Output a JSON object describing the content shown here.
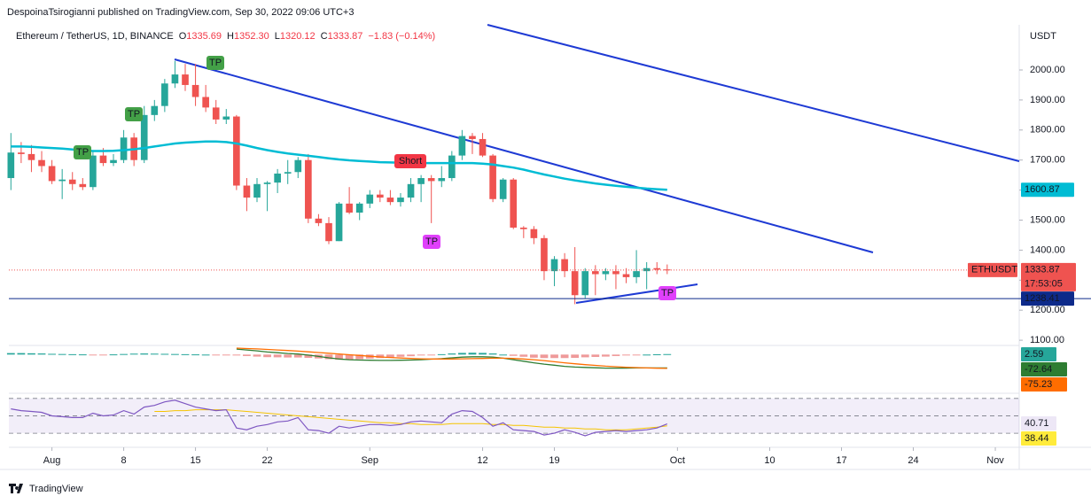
{
  "header": {
    "publisher": "DespoinaTsirogianni published on TradingView.com, Sep 30, 2022 09:06 UTC+3",
    "symbol": "Ethereum / TetherUS, 1D, BINANCE",
    "ohlc": [
      "O",
      "1335.69",
      "H",
      "1352.30",
      "L",
      "1320.12",
      "C",
      "1333.87",
      "−1.83 (−0.14%)"
    ]
  },
  "footer": "TradingView",
  "chart_data": {
    "type": "candlestick",
    "currency": "USDT",
    "countdown": "17:53:05",
    "xlim": [
      -0.2,
      98.33
    ],
    "xticks": [
      {
        "value": 4,
        "label": "Aug"
      },
      {
        "value": 11,
        "label": "8"
      },
      {
        "value": 18,
        "label": "15"
      },
      {
        "value": 25,
        "label": "22"
      },
      {
        "value": 35,
        "label": "Sep"
      },
      {
        "value": 46,
        "label": "12"
      },
      {
        "value": 53,
        "label": "19"
      },
      {
        "value": 65,
        "label": "Oct"
      },
      {
        "value": 74,
        "label": "10"
      },
      {
        "value": 81,
        "label": "17"
      },
      {
        "value": 88,
        "label": "24"
      },
      {
        "value": 96,
        "label": "Nov"
      }
    ],
    "ylim": [
      1082.6,
      2144.5
    ],
    "yticks": [
      {
        "value": 1100,
        "label": "1100.00"
      },
      {
        "value": 1200,
        "label": "1200.00"
      },
      {
        "value": 1300,
        "label": "1300.00"
      },
      {
        "value": 1400,
        "label": "1400.00"
      },
      {
        "value": 1500,
        "label": "1500.00"
      },
      {
        "value": 1600,
        "label": "1600.00"
      },
      {
        "value": 1700,
        "label": "1700.00"
      },
      {
        "value": 1800,
        "label": "1800.00"
      },
      {
        "value": 1900,
        "label": "1900.00"
      },
      {
        "value": 2000,
        "label": "2000.00"
      }
    ],
    "series": [
      {
        "name": "ETHUSDT",
        "up_color": "#26a69a",
        "down_color": "#ef5350",
        "open": [
          1640,
          1725,
          1720,
          1700,
          1680,
          1630,
          1635,
          1620,
          1610,
          1715,
          1690,
          1700,
          1775,
          1700,
          1850,
          1880,
          1955,
          1985,
          1950,
          1910,
          1875,
          1835,
          1845,
          1615,
          1575,
          1620,
          1625,
          1655,
          1660,
          1700,
          1505,
          1490,
          1430,
          1555,
          1525,
          1555,
          1585,
          1575,
          1560,
          1575,
          1620,
          1640,
          1630,
          1640,
          1715,
          1780,
          1770,
          1715,
          1570,
          1635,
          1475,
          1470,
          1440,
          1330,
          1370,
          1330,
          1250,
          1330,
          1320,
          1330,
          1320,
          1310,
          1330,
          1340,
          1335.69
        ],
        "high": [
          1790,
          1760,
          1750,
          1730,
          1700,
          1670,
          1660,
          1640,
          1730,
          1740,
          1720,
          1800,
          1790,
          1880,
          1900,
          1970,
          2030,
          2020,
          2020,
          1950,
          1900,
          1870,
          1850,
          1640,
          1640,
          1630,
          1670,
          1700,
          1710,
          1720,
          1520,
          1510,
          1560,
          1610,
          1560,
          1600,
          1600,
          1600,
          1590,
          1640,
          1650,
          1650,
          1680,
          1730,
          1800,
          1790,
          1790,
          1720,
          1640,
          1640,
          1480,
          1480,
          1450,
          1380,
          1390,
          1410,
          1340,
          1350,
          1340,
          1350,
          1340,
          1400,
          1360,
          1360,
          1352.3
        ],
        "low": [
          1600,
          1690,
          1660,
          1660,
          1620,
          1570,
          1600,
          1600,
          1600,
          1680,
          1680,
          1690,
          1680,
          1690,
          1830,
          1860,
          1940,
          1930,
          1880,
          1860,
          1820,
          1820,
          1600,
          1530,
          1560,
          1530,
          1590,
          1620,
          1640,
          1490,
          1480,
          1420,
          1430,
          1520,
          1500,
          1540,
          1560,
          1550,
          1545,
          1560,
          1560,
          1490,
          1610,
          1630,
          1700,
          1720,
          1710,
          1560,
          1560,
          1470,
          1440,
          1420,
          1300,
          1280,
          1310,
          1220,
          1240,
          1250,
          1300,
          1270,
          1290,
          1290,
          1270,
          1320,
          1320.12
        ],
        "close": [
          1725,
          1720,
          1700,
          1680,
          1630,
          1635,
          1620,
          1610,
          1715,
          1690,
          1700,
          1775,
          1700,
          1850,
          1880,
          1955,
          1985,
          1950,
          1910,
          1875,
          1835,
          1845,
          1615,
          1575,
          1620,
          1625,
          1655,
          1660,
          1700,
          1505,
          1490,
          1430,
          1555,
          1525,
          1555,
          1585,
          1575,
          1560,
          1575,
          1620,
          1640,
          1630,
          1640,
          1715,
          1780,
          1770,
          1715,
          1570,
          1635,
          1475,
          1470,
          1440,
          1330,
          1370,
          1330,
          1250,
          1330,
          1320,
          1330,
          1320,
          1310,
          1330,
          1340,
          1335,
          1333.87
        ]
      },
      {
        "color": "#00bcd4",
        "values": [
          1745,
          1745,
          1744,
          1742,
          1740,
          1738,
          1735,
          1732,
          1730,
          1730,
          1731,
          1733,
          1736,
          1740,
          1745,
          1750,
          1755,
          1758,
          1760,
          1762,
          1762,
          1760,
          1755,
          1748,
          1740,
          1733,
          1727,
          1722,
          1718,
          1714,
          1710,
          1706,
          1702,
          1699,
          1697,
          1695,
          1693,
          1692,
          1691,
          1690,
          1690,
          1690,
          1690,
          1690,
          1690,
          1690,
          1688,
          1685,
          1680,
          1675,
          1668,
          1660,
          1652,
          1645,
          1638,
          1632,
          1627,
          1622,
          1618,
          1614,
          1611,
          1608,
          1605,
          1603,
          1600.87
        ]
      }
    ],
    "hline": 1238.41,
    "hline_color": "#0d2a8a",
    "annotations": [
      "TP",
      "TP",
      "TP",
      "Short",
      "TP",
      "TP"
    ],
    "indicators": [
      {
        "type": "macd",
        "ylim": [
          -95,
          40
        ],
        "histogram": {
          "color": "#26a69a",
          "down_color": "#ef9a9a",
          "values": [
            8,
            8,
            7,
            6,
            4,
            3,
            2,
            1,
            -1,
            -2,
            1,
            3,
            5,
            6,
            5,
            4,
            3,
            2,
            1,
            0,
            -2,
            -4,
            -5,
            -8,
            -11,
            -14,
            -15,
            -16,
            -16,
            -18,
            -21,
            -25,
            -28,
            -27,
            -25,
            -22,
            -19,
            -16,
            -12,
            -9,
            -5,
            -1,
            2,
            6,
            9,
            10,
            9,
            6,
            0,
            -7,
            -12,
            -17,
            -19,
            -19,
            -19,
            -18,
            -15,
            -13,
            -11,
            -8,
            -5,
            -2,
            0,
            1.6,
            2.59
          ]
        },
        "macd": {
          "color": "#2e7d32",
          "values": [
            null,
            null,
            null,
            null,
            null,
            null,
            null,
            null,
            null,
            null,
            null,
            null,
            null,
            null,
            null,
            null,
            null,
            null,
            null,
            null,
            null,
            null,
            30,
            25,
            20,
            14,
            10,
            6,
            3,
            -3,
            -10,
            -18,
            -24,
            -28,
            -30,
            -31,
            -32,
            -32,
            -31,
            -30,
            -28,
            -25,
            -22,
            -18,
            -14,
            -12,
            -12,
            -14,
            -20,
            -28,
            -36,
            -45,
            -52,
            -58,
            -64,
            -68,
            -70,
            -72,
            -74,
            -74,
            -74,
            -73,
            -73,
            -72.9,
            -72.64
          ]
        },
        "signal": {
          "color": "#ff6d00",
          "values": [
            null,
            null,
            null,
            null,
            null,
            null,
            null,
            null,
            null,
            null,
            null,
            null,
            null,
            null,
            null,
            null,
            null,
            null,
            null,
            null,
            null,
            null,
            35,
            33,
            31,
            28,
            25,
            22,
            19,
            15,
            11,
            7,
            3,
            -1,
            -5,
            -9,
            -13,
            -16,
            -19,
            -21,
            -23,
            -24,
            -24,
            -24,
            -23,
            -22,
            -21,
            -20,
            -20,
            -21,
            -24,
            -28,
            -33,
            -39,
            -45,
            -50,
            -55,
            -59,
            -63,
            -66,
            -69,
            -71,
            -73,
            -74.5,
            -75.23
          ]
        }
      },
      {
        "type": "rsi",
        "ylim": [
          25,
          80
        ],
        "levels": [
          70,
          50,
          30
        ],
        "rsi": {
          "color": "#7e57c2",
          "values": [
            58,
            56,
            55,
            54,
            50,
            49,
            48,
            48,
            53,
            50,
            51,
            56,
            52,
            60,
            62,
            66,
            68,
            64,
            60,
            58,
            56,
            57,
            36,
            34,
            38,
            40,
            43,
            44,
            48,
            34,
            33,
            30,
            38,
            36,
            38,
            40,
            40,
            39,
            40,
            43,
            44,
            43,
            42,
            52,
            56,
            55,
            48,
            38,
            42,
            34,
            33,
            32,
            28,
            30,
            34,
            31,
            27,
            31,
            32,
            33,
            32,
            33,
            34,
            36,
            40.71
          ]
        },
        "ma": {
          "color": "#f5c400",
          "values": [
            null,
            null,
            null,
            null,
            null,
            null,
            null,
            null,
            null,
            null,
            null,
            null,
            null,
            null,
            55,
            55,
            56,
            56,
            57,
            57,
            57,
            57,
            56,
            55,
            54,
            53,
            52,
            51,
            50,
            49,
            48,
            47,
            46,
            45,
            44,
            43,
            42,
            42,
            41,
            41,
            40,
            40,
            40,
            41,
            41,
            41,
            41,
            40,
            40,
            39,
            39,
            38,
            37,
            37,
            36,
            36,
            35,
            35,
            34,
            34,
            34,
            35,
            36,
            37,
            38.44
          ]
        }
      }
    ]
  }
}
